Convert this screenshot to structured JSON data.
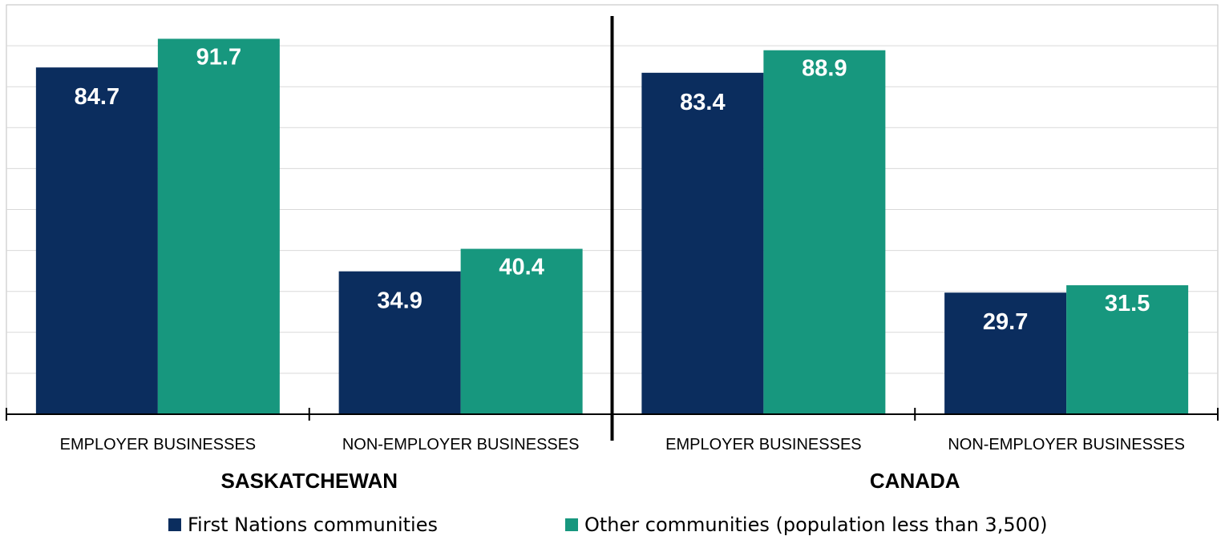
{
  "chart_data": {
    "type": "bar",
    "groups": [
      {
        "name": "SASKATCHEWAN",
        "categories": [
          "EMPLOYER BUSINESSES",
          "NON-EMPLOYER BUSINESSES"
        ]
      },
      {
        "name": "CANADA",
        "categories": [
          "EMPLOYER BUSINESSES",
          "NON-EMPLOYER BUSINESSES"
        ]
      }
    ],
    "categories": [
      "EMPLOYER BUSINESSES",
      "NON-EMPLOYER BUSINESSES",
      "EMPLOYER BUSINESSES",
      "NON-EMPLOYER BUSINESSES"
    ],
    "series": [
      {
        "name": "First Nations communities",
        "color": "#0b2d5e",
        "values": [
          84.7,
          34.9,
          83.4,
          29.7
        ]
      },
      {
        "name": "Other communities (population less than 3,500)",
        "color": "#17977e",
        "values": [
          91.7,
          40.4,
          88.9,
          31.5
        ]
      }
    ],
    "ylim": [
      0,
      100
    ],
    "grid": true,
    "data_labels": true,
    "legend_position": "bottom",
    "title": "",
    "xlabel": "",
    "ylabel": ""
  }
}
